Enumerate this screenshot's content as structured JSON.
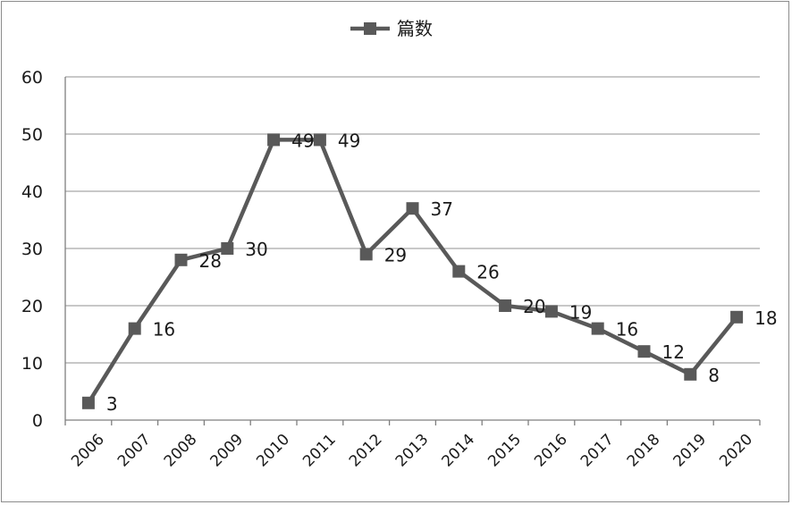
{
  "chart_data": {
    "type": "line",
    "title": "",
    "xlabel": "",
    "ylabel": "",
    "categories": [
      "2006",
      "2007",
      "2008",
      "2009",
      "2010",
      "2011",
      "2012",
      "2013",
      "2014",
      "2015",
      "2016",
      "2017",
      "2018",
      "2019",
      "2020"
    ],
    "series": [
      {
        "name": "篇数",
        "values": [
          3,
          16,
          28,
          30,
          49,
          49,
          29,
          37,
          26,
          20,
          19,
          16,
          12,
          8,
          18
        ]
      }
    ],
    "ylim": [
      0,
      60
    ],
    "yticks": [
      0,
      10,
      20,
      30,
      40,
      50,
      60
    ],
    "grid": true,
    "legend": "top-center",
    "data_labels": true,
    "marker": "square",
    "colors": {
      "line": "#595959",
      "grid": "#a6a6a6",
      "axis": "#7f7f7f"
    }
  }
}
